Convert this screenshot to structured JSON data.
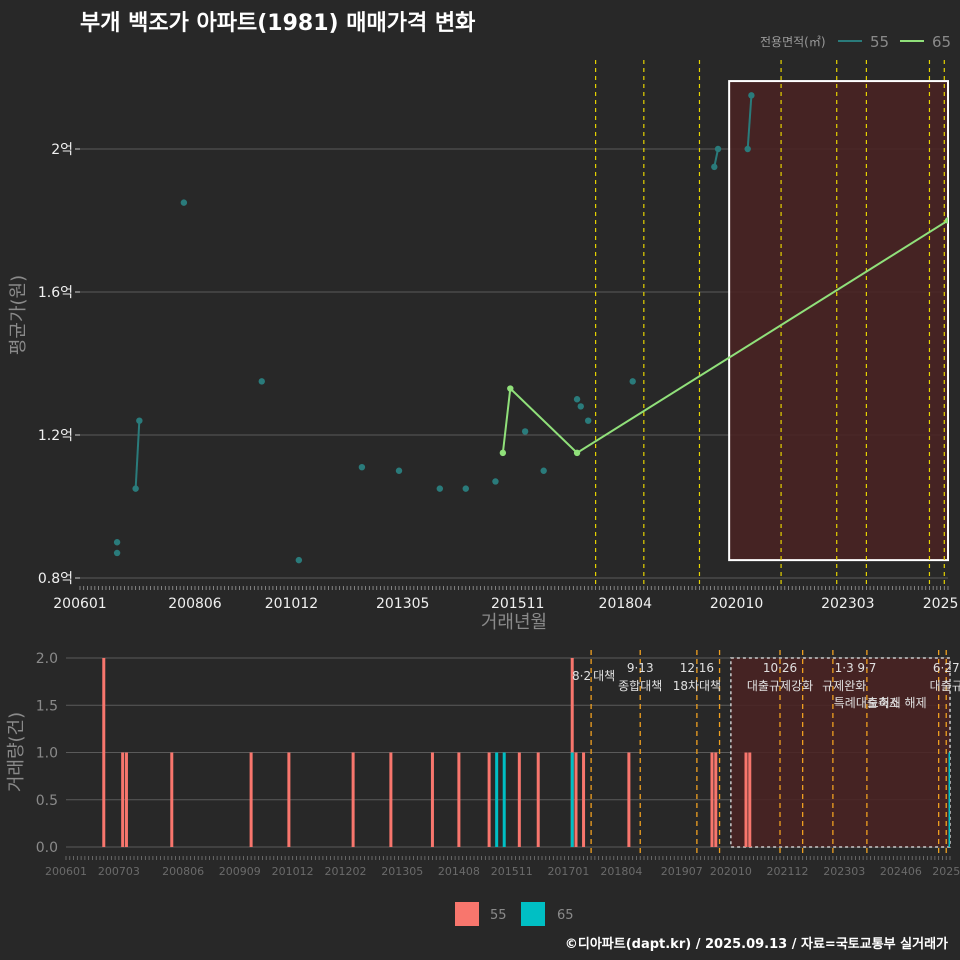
{
  "colors": {
    "background": "#282828",
    "grid": "#5a5a5a",
    "series_55": "#2a7b7b",
    "series_65": "#90e07a",
    "bar_55": "#f8766d",
    "bar_65": "#00bfc4",
    "policy_line_top": "#e6d300",
    "policy_line_bottom": "#f0a020",
    "highlight_fill": "#4a2222",
    "text_light": "#f0f0f0",
    "text_dim": "#8a8a8a"
  },
  "footer": "©디아파트(dapt.kr) / 2025.09.13 / 자료=국토교통부 실거래가",
  "chart_data": [
    {
      "type": "line",
      "title": "부개 백조가 아파트(1981) 매매가격 변화",
      "xlabel": "거래년월",
      "ylabel": "평균가(원)",
      "x_unit": "months since 2006-01",
      "xlim": [
        0,
        234
      ],
      "ylim": [
        0.8,
        2.2
      ],
      "yticks": [
        0.8,
        1.2,
        1.6,
        2.0
      ],
      "ytick_labels": [
        "0.8억",
        "1.2억",
        "1.6억",
        "2억"
      ],
      "xticks": [
        0,
        31,
        57,
        87,
        118,
        147,
        177,
        207,
        232
      ],
      "xtick_labels": [
        "200601",
        "200806",
        "201012",
        "201305",
        "201511",
        "201804",
        "202010",
        "202303",
        "2025"
      ],
      "legend_title": "전용면적(㎡)",
      "legend": [
        "55",
        "65"
      ],
      "series": [
        {
          "name": "55",
          "segments": [
            [
              [
                10,
                0.9
              ]
            ],
            [
              [
                10,
                0.87
              ]
            ],
            [
              [
                15,
                1.05
              ],
              [
                16,
                1.24
              ]
            ],
            [
              [
                28,
                1.85
              ]
            ],
            [
              [
                49,
                1.35
              ]
            ],
            [
              [
                59,
                0.85
              ]
            ],
            [
              [
                76,
                1.11
              ]
            ],
            [
              [
                86,
                1.1
              ]
            ],
            [
              [
                97,
                1.05
              ]
            ],
            [
              [
                104,
                1.05
              ]
            ],
            [
              [
                112,
                1.07
              ]
            ],
            [
              [
                120,
                1.21
              ]
            ],
            [
              [
                125,
                1.1
              ]
            ],
            [
              [
                134,
                1.3
              ]
            ],
            [
              [
                135,
                1.28
              ]
            ],
            [
              [
                137,
                1.24
              ]
            ],
            [
              [
                149,
                1.35
              ]
            ],
            [
              [
                171,
                1.95
              ],
              [
                172,
                2.0
              ]
            ],
            [
              [
                180,
                2.0
              ],
              [
                181,
                2.15
              ]
            ]
          ]
        },
        {
          "name": "65",
          "segments": [
            [
              [
                114,
                1.15
              ],
              [
                116,
                1.33
              ],
              [
                134,
                1.15
              ],
              [
                234,
                1.8
              ]
            ]
          ]
        }
      ],
      "policy_lines": [
        139,
        152,
        167,
        189,
        204,
        212,
        229,
        233
      ],
      "highlight": {
        "x": [
          175,
          234
        ],
        "y": [
          0.85,
          2.19
        ]
      }
    },
    {
      "type": "bar",
      "ylabel": "거래량(건)",
      "x_unit": "months since 2006-01",
      "xlim": [
        0,
        234
      ],
      "ylim": [
        0,
        2.0
      ],
      "yticks": [
        0,
        0.5,
        1.0,
        1.5,
        2.0
      ],
      "ytick_labels": [
        "0.0",
        "0.5",
        "1.0",
        "1.5",
        "2.0"
      ],
      "xticks": [
        0,
        14,
        31,
        46,
        60,
        74,
        89,
        104,
        118,
        133,
        147,
        163,
        176,
        191,
        206,
        221,
        233
      ],
      "xtick_labels": [
        "200601",
        "200703",
        "200806",
        "200909",
        "201012",
        "201202",
        "201305",
        "201408",
        "201511",
        "201701",
        "201804",
        "201907",
        "202010",
        "202112",
        "202303",
        "202406",
        "2025"
      ],
      "legend": [
        "55",
        "65"
      ],
      "bars_55": [
        [
          10,
          2
        ],
        [
          15,
          1
        ],
        [
          16,
          1
        ],
        [
          28,
          1
        ],
        [
          49,
          1
        ],
        [
          59,
          1
        ],
        [
          76,
          1
        ],
        [
          86,
          1
        ],
        [
          97,
          1
        ],
        [
          104,
          1
        ],
        [
          112,
          1
        ],
        [
          120,
          1
        ],
        [
          125,
          1
        ],
        [
          134,
          2
        ],
        [
          135,
          1
        ],
        [
          137,
          1
        ],
        [
          149,
          1
        ],
        [
          171,
          1
        ],
        [
          172,
          1
        ],
        [
          180,
          1
        ],
        [
          181,
          1
        ]
      ],
      "bars_65": [
        [
          114,
          1
        ],
        [
          116,
          1
        ],
        [
          134,
          1
        ],
        [
          234,
          1
        ]
      ],
      "policy_lines": [
        139,
        152,
        167,
        173,
        189,
        195,
        203,
        212,
        231,
        233
      ],
      "policy_labels": [
        {
          "x": 139,
          "date": "8·2",
          "name": "대책"
        },
        {
          "x": 152,
          "date": "9·13",
          "name": "종합대책"
        },
        {
          "x": 167,
          "date": "12·16",
          "name": "18차대책"
        },
        {
          "x": 189,
          "date": "10·26",
          "name": "대출규제강화"
        },
        {
          "x": 206,
          "date": "1·3",
          "name": "규제완화"
        },
        {
          "x": 212,
          "date": "9·7",
          "name": "특례대출축소"
        },
        {
          "x": 220,
          "date": "",
          "name": "토허제 해제"
        },
        {
          "x": 233,
          "date": "6·27",
          "name": "대출규"
        }
      ],
      "highlight": {
        "x": [
          176,
          234
        ],
        "y": [
          0,
          2.0
        ]
      }
    }
  ]
}
